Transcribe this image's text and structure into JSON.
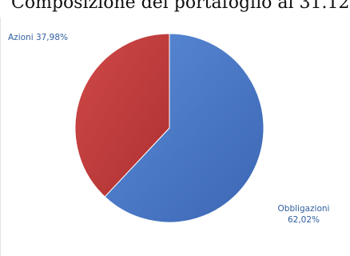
{
  "chart_data": {
    "type": "pie",
    "title": "Composizione del portafoglio al 31.12",
    "categories": [
      "Obbligazioni",
      "Azioni"
    ],
    "values": [
      62.02,
      37.98
    ],
    "unit": "%",
    "labels": [
      {
        "category": "Obbligazioni",
        "value_text": "62,02%"
      },
      {
        "category": "Azioni",
        "value_text": "37,98%"
      }
    ],
    "colors": [
      "#4472c4",
      "#c0393b"
    ],
    "start_angle_deg": 0,
    "direction": "clockwise",
    "legend": "none",
    "grid": false
  }
}
